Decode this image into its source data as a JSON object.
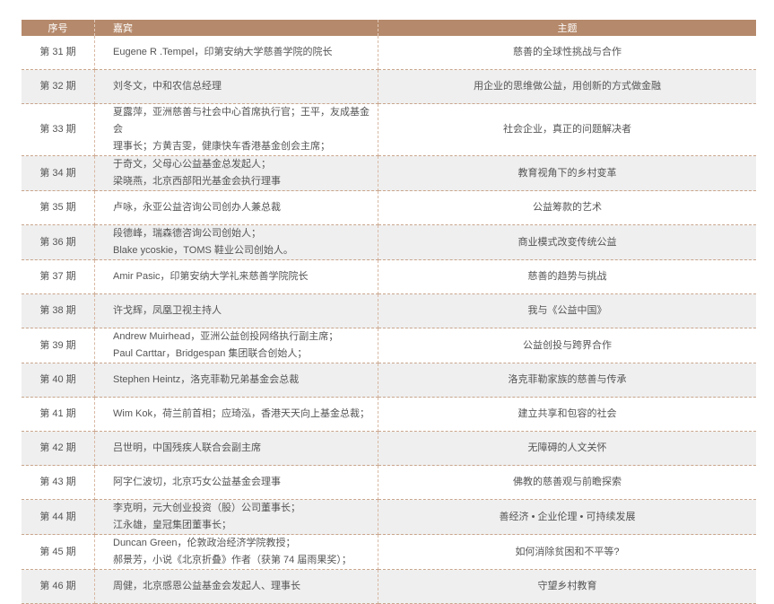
{
  "header": {
    "col_num": "序号",
    "col_guest": "嘉宾",
    "col_topic": "主题"
  },
  "rows": [
    {
      "num": "第 31 期",
      "guest": [
        "Eugene R .Tempel，印第安纳大学慈善学院的院长"
      ],
      "topic": "慈善的全球性挑战与合作"
    },
    {
      "num": "第 32 期",
      "guest": [
        "刘冬文，中和农信总经理"
      ],
      "topic": "用企业的思维做公益，用创新的方式做金融"
    },
    {
      "num": "第 33 期",
      "guest": [
        "夏露萍，亚洲慈善与社会中心首席执行官；王平，友成基金会",
        "理事长；方黄吉雯，健康快车香港基金创会主席；"
      ],
      "topic": "社会企业，真正的问题解决者"
    },
    {
      "num": "第 34 期",
      "guest": [
        "于奇文，父母心公益基金总发起人；",
        "梁晓燕，北京西部阳光基金会执行理事"
      ],
      "topic": "教育视角下的乡村变革"
    },
    {
      "num": "第 35 期",
      "guest": [
        "卢咏，永亚公益咨询公司创办人兼总裁"
      ],
      "topic": "公益筹款的艺术"
    },
    {
      "num": "第 36 期",
      "guest": [
        "段德峰，瑞森德咨询公司创始人；",
        "Blake ycoskie，TOMS 鞋业公司创始人。"
      ],
      "topic": "商业模式改变传统公益"
    },
    {
      "num": "第 37 期",
      "guest": [
        "Amir Pasic，印第安纳大学礼来慈善学院院长"
      ],
      "topic": "慈善的趋势与挑战"
    },
    {
      "num": "第 38 期",
      "guest": [
        "许戈辉，凤凰卫视主持人"
      ],
      "topic": "我与《公益中国》"
    },
    {
      "num": "第 39 期",
      "guest": [
        "Andrew Muirhead，亚洲公益创投网络执行副主席；",
        "Paul Carttar，Bridgespan 集团联合创始人；"
      ],
      "topic": "公益创投与跨界合作"
    },
    {
      "num": "第 40 期",
      "guest": [
        "Stephen Heintz，洛克菲勒兄弟基金会总裁"
      ],
      "topic": "洛克菲勒家族的慈善与传承"
    },
    {
      "num": "第 41 期",
      "guest": [
        "Wim Kok，荷兰前首相；应琦泓，香港天天向上基金总裁；"
      ],
      "topic": "建立共享和包容的社会"
    },
    {
      "num": "第 42 期",
      "guest": [
        "吕世明，中国残疾人联合会副主席"
      ],
      "topic": "无障碍的人文关怀"
    },
    {
      "num": "第 43 期",
      "guest": [
        "阿字仁波切，北京巧女公益基金会理事"
      ],
      "topic": "佛教的慈善观与前瞻探索"
    },
    {
      "num": "第 44 期",
      "guest": [
        "李克明，元大创业投资（股）公司董事长；",
        "江永雄，皇冠集团董事长；"
      ],
      "topic": "善经济 • 企业伦理 • 可持续发展"
    },
    {
      "num": "第 45 期",
      "guest": [
        "Duncan Green，伦敦政治经济学院教授；",
        "郝景芳，小说《北京折叠》作者（获第 74 届雨果奖）；"
      ],
      "topic": "如何消除贫困和不平等?"
    },
    {
      "num": "第 46 期",
      "guest": [
        "周健，北京感恩公益基金会发起人、理事长"
      ],
      "topic": "守望乡村教育"
    }
  ]
}
